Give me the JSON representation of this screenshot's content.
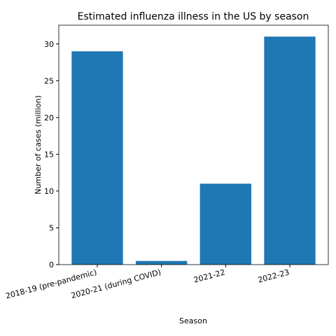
{
  "chart_data": {
    "type": "bar",
    "title": "Estimated influenza illness in the US by season",
    "xlabel": "Season",
    "ylabel": "Number of cases (million)",
    "categories": [
      "2018-19 (pre-pandemic)",
      "2020-21 (during COVID)",
      "2021-22",
      "2022-23"
    ],
    "values": [
      29,
      0.5,
      11,
      31
    ],
    "color": "#1f77b4",
    "ylim": [
      0,
      32.55
    ],
    "yticks": [
      0,
      5,
      10,
      15,
      20,
      25,
      30
    ]
  }
}
